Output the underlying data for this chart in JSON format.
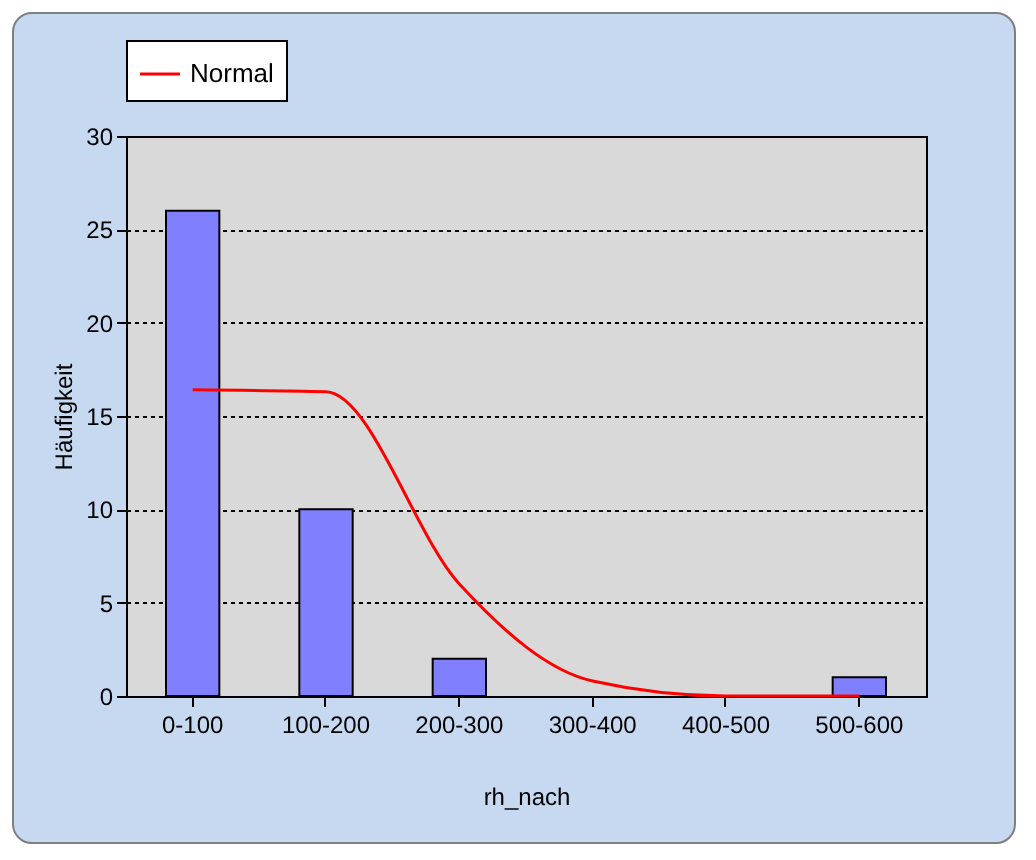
{
  "chart_data": {
    "type": "bar",
    "xlabel": "rh_nach",
    "ylabel": "Häufigkeit",
    "categories": [
      "0-100",
      "100-200",
      "200-300",
      "300-400",
      "400-500",
      "500-600"
    ],
    "series": [
      {
        "color": "#8080ff",
        "values": [
          26,
          10,
          2,
          0,
          0,
          1
        ]
      },
      {
        "type": "line",
        "name": "Normal",
        "color": "#ff0000",
        "values": [
          16.4,
          16.3,
          6,
          0.8,
          0,
          0
        ]
      }
    ],
    "ylim": [
      0,
      30
    ],
    "yticks": [
      0,
      5,
      10,
      15,
      20,
      25,
      30
    ],
    "grid": "y",
    "legend": "top",
    "marker": "none"
  }
}
